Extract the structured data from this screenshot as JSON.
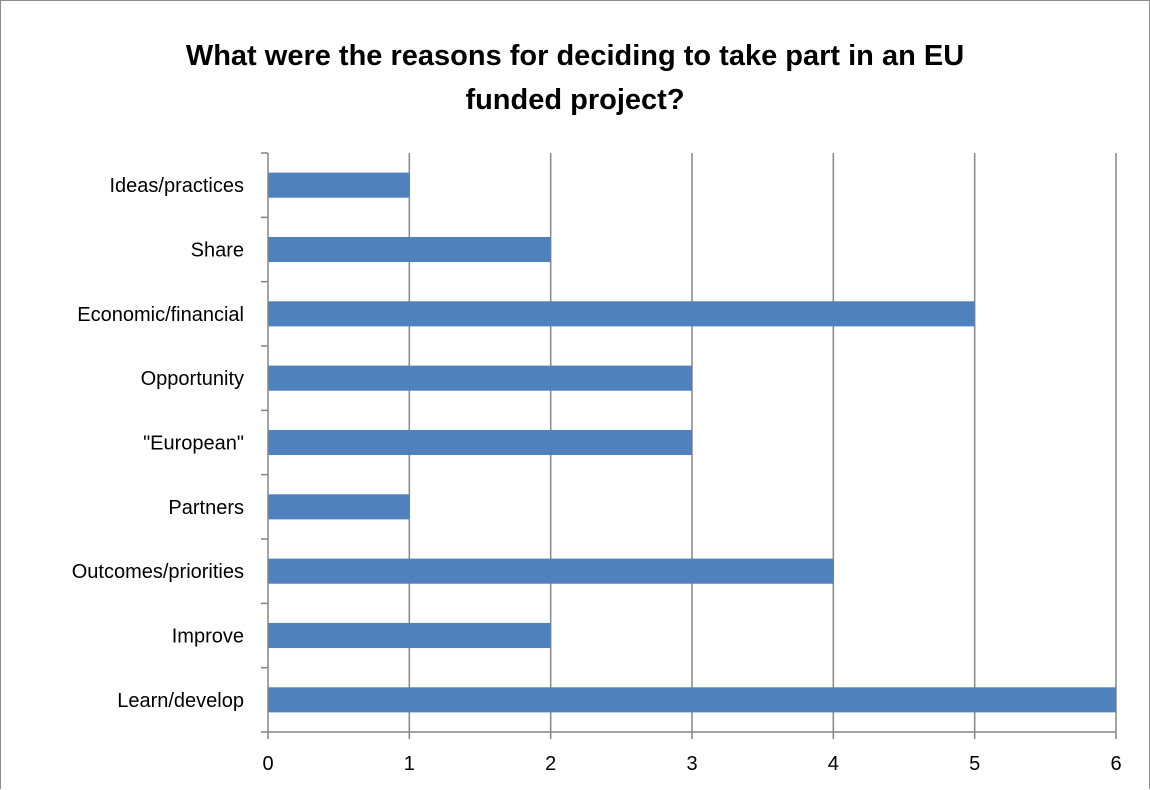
{
  "chart_data": {
    "type": "bar",
    "orientation": "horizontal",
    "title": "What were the reasons for deciding to take part in an EU funded project?",
    "title_lines": [
      "What were the reasons for deciding to take part in an EU",
      "funded project?"
    ],
    "categories": [
      "Ideas/practices",
      "Share",
      "Economic/financial",
      "Opportunity",
      "\"European\"",
      "Partners",
      "Outcomes/priorities",
      "Improve",
      "Learn/develop"
    ],
    "values": [
      1,
      2,
      5,
      3,
      3,
      1,
      4,
      2,
      6
    ],
    "xlim": [
      0,
      6
    ],
    "x_ticks": [
      "0",
      "1",
      "2",
      "3",
      "4",
      "5",
      "6"
    ],
    "xlabel": "",
    "ylabel": "",
    "grid": true,
    "legend": "none",
    "bar_color": "#4f81bd",
    "grid_color": "#868686"
  }
}
